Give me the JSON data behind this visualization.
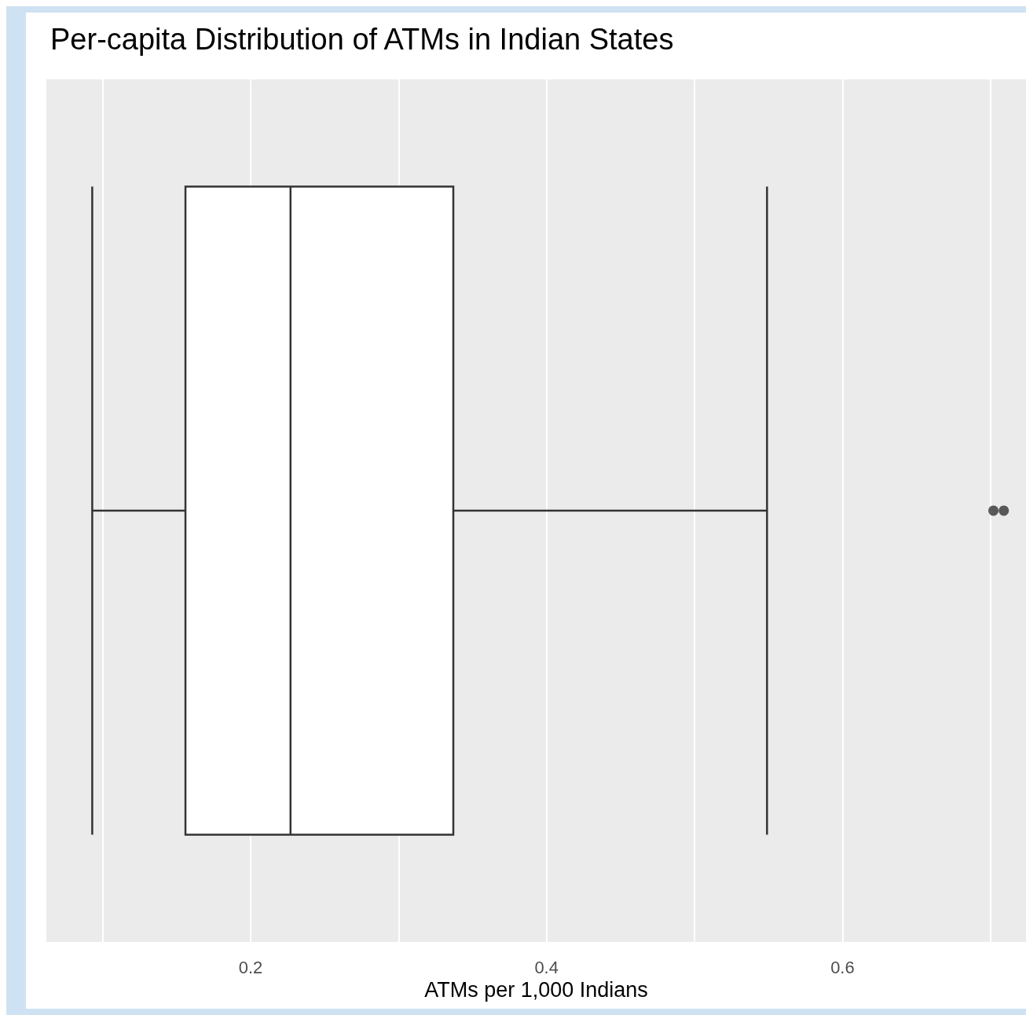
{
  "chart_data": {
    "type": "box",
    "title": "Per-capita Distribution of ATMs in Indian States",
    "xlabel": "ATMs per 1,000 Indians",
    "orientation": "horizontal",
    "categories": [
      null
    ],
    "boxes": [
      {
        "low": 0.093,
        "q1": 0.156,
        "median": 0.227,
        "q3": 0.337,
        "high": 0.549,
        "outliers": [
          0.702,
          0.709
        ]
      }
    ],
    "color": "#333333",
    "xlim": [
      0.062,
      0.724
    ],
    "xticks": [
      {
        "value": 0.1,
        "label": null
      },
      0.2,
      {
        "value": 0.3,
        "label": null
      },
      0.4,
      {
        "value": 0.5,
        "label": null
      },
      0.6,
      {
        "value": 0.7,
        "label": null
      }
    ],
    "grid": true,
    "tick_labels": "x"
  }
}
